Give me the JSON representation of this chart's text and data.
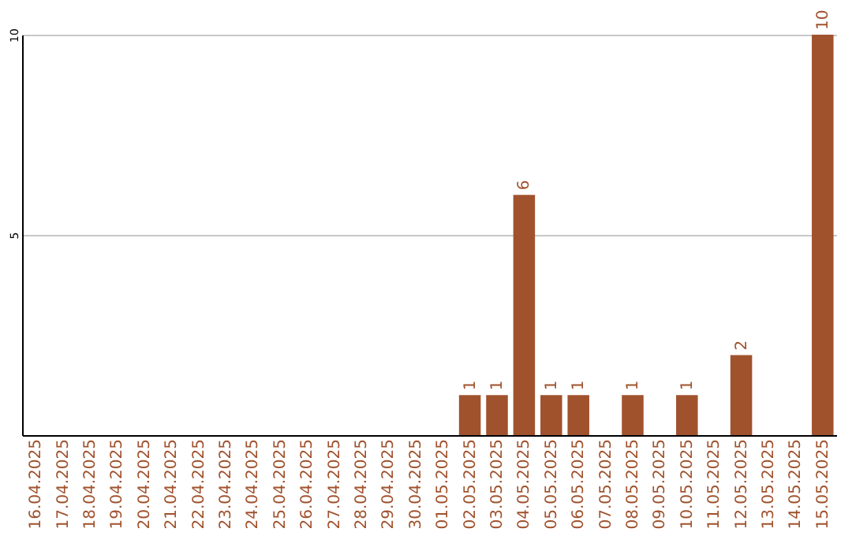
{
  "chart_data": {
    "type": "bar",
    "categories": [
      "16.04.2025",
      "17.04.2025",
      "18.04.2025",
      "19.04.2025",
      "20.04.2025",
      "21.04.2025",
      "22.04.2025",
      "23.04.2025",
      "24.04.2025",
      "25.04.2025",
      "26.04.2025",
      "27.04.2025",
      "28.04.2025",
      "29.04.2025",
      "30.04.2025",
      "01.05.2025",
      "02.05.2025",
      "03.05.2025",
      "04.05.2025",
      "05.05.2025",
      "06.05.2025",
      "07.05.2025",
      "08.05.2025",
      "09.05.2025",
      "10.05.2025",
      "11.05.2025",
      "12.05.2025",
      "13.05.2025",
      "14.05.2025",
      "15.05.2025"
    ],
    "values": [
      0,
      0,
      0,
      0,
      0,
      0,
      0,
      0,
      0,
      0,
      0,
      0,
      0,
      0,
      0,
      0,
      1,
      1,
      6,
      1,
      1,
      0,
      1,
      0,
      1,
      0,
      2,
      0,
      0,
      10
    ],
    "value_labels": [
      null,
      null,
      null,
      null,
      null,
      null,
      null,
      null,
      null,
      null,
      null,
      null,
      null,
      null,
      null,
      null,
      "1",
      "1",
      "6",
      "1",
      "1",
      null,
      "1",
      null,
      "1",
      null,
      "2",
      null,
      null,
      "10"
    ],
    "color": "#a0522d",
    "ylim": [
      0,
      10
    ],
    "yticks": [
      5,
      10
    ],
    "grid": "y"
  }
}
